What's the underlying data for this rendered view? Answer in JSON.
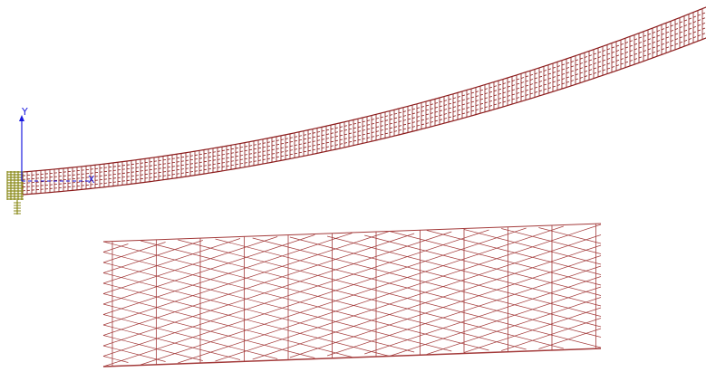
{
  "viewport": {
    "axes": {
      "y_label": "Y",
      "x_label": "X",
      "color": "#1a1adf"
    },
    "mesh_color": "#8b1a1a",
    "detail_mesh_color": "#a33a3a",
    "support_color": "#8a8a1a"
  }
}
